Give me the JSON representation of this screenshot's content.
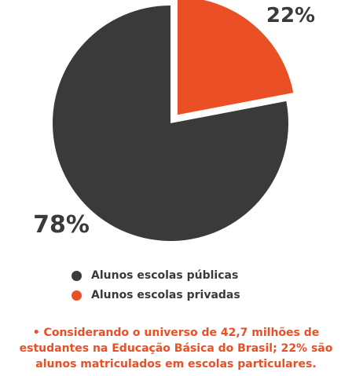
{
  "colors": {
    "public": "#3a3a3a",
    "private": "#eb4f25",
    "note": "#eb4f25"
  },
  "chart_data": {
    "type": "pie",
    "slices": [
      {
        "label": "Alunos escolas públicas",
        "value": 78,
        "display": "78%"
      },
      {
        "label": "Alunos escolas privadas",
        "value": 22,
        "display": "22%"
      }
    ],
    "legend_position": "bottom"
  },
  "legend": {
    "items": [
      {
        "label": "Alunos escolas públicas"
      },
      {
        "label": "Alunos escolas privadas"
      }
    ]
  },
  "note": {
    "bullet": "•",
    "text": "Considerando o universo de 42,7 milhões de estudantes na Educação Básica do Brasil; 22% são alunos matriculados em escolas particulares."
  }
}
